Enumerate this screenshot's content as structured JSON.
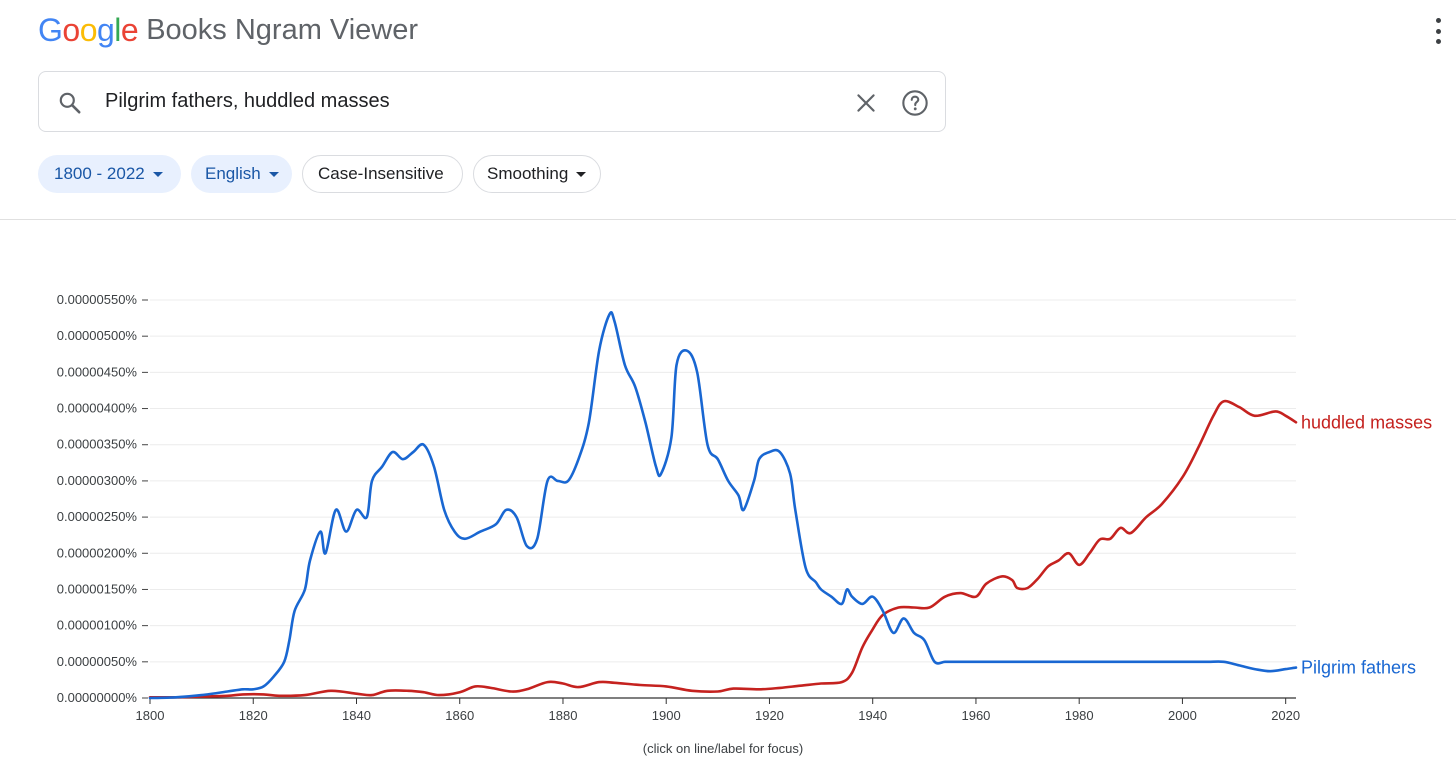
{
  "header": {
    "logo_letters": [
      {
        "char": "G",
        "color": "#4285F4"
      },
      {
        "char": "o",
        "color": "#EA4335"
      },
      {
        "char": "o",
        "color": "#FBBC05"
      },
      {
        "char": "g",
        "color": "#4285F4"
      },
      {
        "char": "l",
        "color": "#34A853"
      },
      {
        "char": "e",
        "color": "#EA4335"
      }
    ],
    "logo_text": "Google",
    "product_name": "Books Ngram Viewer",
    "menu_icon": "more-vert-icon"
  },
  "search": {
    "query": "Pilgrim fathers, huddled masses",
    "search_icon": "search-icon",
    "clear_icon": "close-icon",
    "help_icon": "help-icon"
  },
  "filters": {
    "year_range": "1800 - 2022",
    "language": "English",
    "case_mode": "Case-Insensitive",
    "smoothing": "Smoothing"
  },
  "chart_data": {
    "type": "line",
    "title": "",
    "xlabel": "",
    "ylabel": "",
    "xlim": [
      1800,
      2022
    ],
    "ylim": [
      0,
      5.5e-06
    ],
    "x_ticks": [
      "1800",
      "1820",
      "1840",
      "1860",
      "1880",
      "1900",
      "1920",
      "1940",
      "1960",
      "1980",
      "2000",
      "2020"
    ],
    "y_ticks": [
      "0.00000000%",
      "0.00000050%",
      "0.00000100%",
      "0.00000150%",
      "0.00000200%",
      "0.00000250%",
      "0.00000300%",
      "0.00000350%",
      "0.00000400%",
      "0.00000450%",
      "0.00000500%",
      "0.00000550%"
    ],
    "grid": true,
    "legend": "line-end labels",
    "series": [
      {
        "name": "huddled masses",
        "color": "#c5221f",
        "points": [
          [
            1800,
            1e-08
          ],
          [
            1805,
            1e-08
          ],
          [
            1810,
            2e-08
          ],
          [
            1815,
            3e-08
          ],
          [
            1818,
            5e-08
          ],
          [
            1822,
            5e-08
          ],
          [
            1825,
            3e-08
          ],
          [
            1830,
            4e-08
          ],
          [
            1835,
            1e-07
          ],
          [
            1840,
            6e-08
          ],
          [
            1843,
            4e-08
          ],
          [
            1846,
            1e-07
          ],
          [
            1850,
            1e-07
          ],
          [
            1853,
            8e-08
          ],
          [
            1856,
            4e-08
          ],
          [
            1860,
            8e-08
          ],
          [
            1863,
            1.6e-07
          ],
          [
            1866,
            1.4e-07
          ],
          [
            1870,
            9e-08
          ],
          [
            1873,
            1.2e-07
          ],
          [
            1877,
            2.2e-07
          ],
          [
            1880,
            2e-07
          ],
          [
            1883,
            1.5e-07
          ],
          [
            1887,
            2.2e-07
          ],
          [
            1890,
            2.1e-07
          ],
          [
            1895,
            1.8e-07
          ],
          [
            1900,
            1.6e-07
          ],
          [
            1905,
            1e-07
          ],
          [
            1910,
            9e-08
          ],
          [
            1913,
            1.3e-07
          ],
          [
            1918,
            1.2e-07
          ],
          [
            1922,
            1.4e-07
          ],
          [
            1926,
            1.7e-07
          ],
          [
            1930,
            2e-07
          ],
          [
            1934,
            2.2e-07
          ],
          [
            1936,
            3.5e-07
          ],
          [
            1938,
            7e-07
          ],
          [
            1940,
            9.5e-07
          ],
          [
            1942,
            1.15e-06
          ],
          [
            1945,
            1.25e-06
          ],
          [
            1948,
            1.25e-06
          ],
          [
            1951,
            1.25e-06
          ],
          [
            1954,
            1.4e-06
          ],
          [
            1957,
            1.45e-06
          ],
          [
            1960,
            1.4e-06
          ],
          [
            1962,
            1.58e-06
          ],
          [
            1965,
            1.68e-06
          ],
          [
            1967,
            1.63e-06
          ],
          [
            1968,
            1.52e-06
          ],
          [
            1970,
            1.52e-06
          ],
          [
            1972,
            1.65e-06
          ],
          [
            1974,
            1.82e-06
          ],
          [
            1976,
            1.9e-06
          ],
          [
            1978,
            2e-06
          ],
          [
            1980,
            1.84e-06
          ],
          [
            1982,
            2e-06
          ],
          [
            1984,
            2.19e-06
          ],
          [
            1986,
            2.2e-06
          ],
          [
            1988,
            2.35e-06
          ],
          [
            1990,
            2.28e-06
          ],
          [
            1993,
            2.5e-06
          ],
          [
            1996,
            2.68e-06
          ],
          [
            2000,
            3.05e-06
          ],
          [
            2003,
            3.45e-06
          ],
          [
            2006,
            3.9e-06
          ],
          [
            2008,
            4.1e-06
          ],
          [
            2011,
            4.02e-06
          ],
          [
            2014,
            3.9e-06
          ],
          [
            2018,
            3.96e-06
          ],
          [
            2020,
            3.9e-06
          ],
          [
            2022,
            3.81e-06
          ]
        ]
      },
      {
        "name": "Pilgrim fathers",
        "color": "#1967d2",
        "points": [
          [
            1800,
            0.0
          ],
          [
            1805,
            1e-08
          ],
          [
            1810,
            4e-08
          ],
          [
            1815,
            9e-08
          ],
          [
            1818,
            1.2e-07
          ],
          [
            1820,
            1.2e-07
          ],
          [
            1822,
            1.6e-07
          ],
          [
            1824,
            3e-07
          ],
          [
            1826,
            5e-07
          ],
          [
            1827,
            8e-07
          ],
          [
            1828,
            1.2e-06
          ],
          [
            1830,
            1.5e-06
          ],
          [
            1831,
            1.9e-06
          ],
          [
            1833,
            2.3e-06
          ],
          [
            1834,
            2e-06
          ],
          [
            1836,
            2.6e-06
          ],
          [
            1838,
            2.3e-06
          ],
          [
            1840,
            2.6e-06
          ],
          [
            1842,
            2.5e-06
          ],
          [
            1843,
            3e-06
          ],
          [
            1845,
            3.2e-06
          ],
          [
            1847,
            3.4e-06
          ],
          [
            1849,
            3.3e-06
          ],
          [
            1851,
            3.4e-06
          ],
          [
            1853,
            3.5e-06
          ],
          [
            1855,
            3.2e-06
          ],
          [
            1857,
            2.6e-06
          ],
          [
            1859,
            2.3e-06
          ],
          [
            1861,
            2.2e-06
          ],
          [
            1864,
            2.3e-06
          ],
          [
            1867,
            2.4e-06
          ],
          [
            1869,
            2.6e-06
          ],
          [
            1871,
            2.5e-06
          ],
          [
            1873,
            2.1e-06
          ],
          [
            1875,
            2.2e-06
          ],
          [
            1877,
            3e-06
          ],
          [
            1879,
            3e-06
          ],
          [
            1881,
            3e-06
          ],
          [
            1883,
            3.3e-06
          ],
          [
            1885,
            3.8e-06
          ],
          [
            1887,
            4.8e-06
          ],
          [
            1889,
            5.3e-06
          ],
          [
            1890,
            5.2e-06
          ],
          [
            1892,
            4.6e-06
          ],
          [
            1894,
            4.3e-06
          ],
          [
            1896,
            3.8e-06
          ],
          [
            1898,
            3.2e-06
          ],
          [
            1899,
            3.1e-06
          ],
          [
            1901,
            3.6e-06
          ],
          [
            1902,
            4.6e-06
          ],
          [
            1904,
            4.8e-06
          ],
          [
            1906,
            4.5e-06
          ],
          [
            1908,
            3.5e-06
          ],
          [
            1910,
            3.3e-06
          ],
          [
            1912,
            3e-06
          ],
          [
            1914,
            2.8e-06
          ],
          [
            1915,
            2.6e-06
          ],
          [
            1917,
            3e-06
          ],
          [
            1918,
            3.3e-06
          ],
          [
            1920,
            3.4e-06
          ],
          [
            1922,
            3.4e-06
          ],
          [
            1924,
            3.1e-06
          ],
          [
            1925,
            2.6e-06
          ],
          [
            1927,
            1.8e-06
          ],
          [
            1929,
            1.6e-06
          ],
          [
            1930,
            1.5e-06
          ],
          [
            1932,
            1.4e-06
          ],
          [
            1934,
            1.3e-06
          ],
          [
            1935,
            1.5e-06
          ],
          [
            1936,
            1.4e-06
          ],
          [
            1938,
            1.3e-06
          ],
          [
            1940,
            1.4e-06
          ],
          [
            1942,
            1.2e-06
          ],
          [
            1944,
            9e-07
          ],
          [
            1946,
            1.1e-06
          ],
          [
            1948,
            9e-07
          ],
          [
            1950,
            8e-07
          ],
          [
            1952,
            5e-07
          ],
          [
            1954,
            5e-07
          ],
          [
            1956,
            5e-07
          ],
          [
            1958,
            5e-07
          ],
          [
            1960,
            5e-07
          ],
          [
            1963,
            5e-07
          ],
          [
            1966,
            5e-07
          ],
          [
            1969,
            5e-07
          ],
          [
            1972,
            5e-07
          ],
          [
            1975,
            5e-07
          ],
          [
            1978,
            5e-07
          ],
          [
            1981,
            5e-07
          ],
          [
            1984,
            5e-07
          ],
          [
            1987,
            5e-07
          ],
          [
            1990,
            5e-07
          ],
          [
            1993,
            5e-07
          ],
          [
            1996,
            5e-07
          ],
          [
            1999,
            5e-07
          ],
          [
            2002,
            5e-07
          ],
          [
            2005,
            5e-07
          ],
          [
            2008,
            5e-07
          ],
          [
            2011,
            4.5e-07
          ],
          [
            2014,
            4e-07
          ],
          [
            2017,
            3.7e-07
          ],
          [
            2020,
            4e-07
          ],
          [
            2022,
            4.2e-07
          ]
        ]
      }
    ]
  },
  "footer_note": "(click on line/label for focus)"
}
